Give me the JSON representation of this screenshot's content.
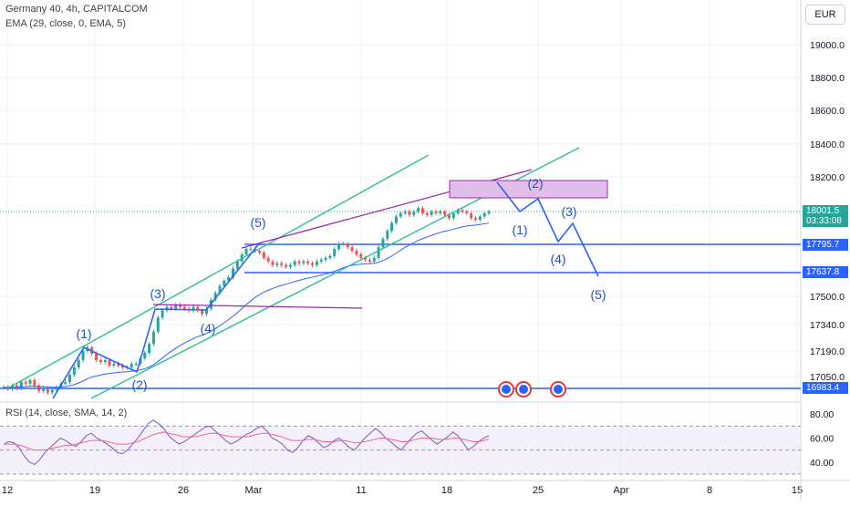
{
  "header": {
    "title": "Germany 40, 4h, CAPITALCOM",
    "ema_label": "EMA (29, close, 0, EMA, 5)",
    "rsi_label": "RSI (14, close, SMA, 14, 2)",
    "currency_button": "EUR"
  },
  "price_tags": {
    "last_price": "18001.5",
    "countdown": "03:33:08",
    "level_1": "17795.7",
    "level_2": "17637.8",
    "level_3": "16983.4"
  },
  "colors": {
    "up": "#26a69a",
    "down": "#ef5350",
    "channel": "#2ebd9b",
    "wave": "#2962ff",
    "wave_label": "#1e53c9",
    "resist": "#9c27b0",
    "rsi": "#7e57c2",
    "rsi_ma": "#f06292",
    "box_fill": "#e1bee7"
  },
  "chart_data": [
    {
      "type": "candlestick",
      "title": "Germany 40, 4h, CAPITALCOM",
      "y_ticks": [
        19000.0,
        18800.0,
        18600.0,
        18400.0,
        18200.0,
        17500.0,
        17340.0,
        17190.0,
        17050.0
      ],
      "x_tick_labels": [
        "12",
        "19",
        "26",
        "Mar",
        "11",
        "18",
        "25",
        "Apr",
        "8",
        "15"
      ],
      "horizontal_levels": [
        17795.7,
        17637.8,
        16983.4
      ],
      "price_path": [
        [
          16990,
          16980,
          17000,
          16985,
          17020,
          17010,
          17030,
          17000,
          16970,
          16985,
          16960,
          16975,
          16990,
          17010,
          17020,
          17060,
          17100,
          17140,
          17190,
          17210,
          17175,
          17140,
          17130,
          17140,
          17110,
          17120,
          17110,
          17100,
          17100,
          17120,
          17120,
          17150,
          17180,
          17230,
          17300,
          17380,
          17420,
          17440,
          17430,
          17450,
          17440,
          17430,
          17420,
          17440,
          17420,
          17400,
          17430,
          17480,
          17520,
          17560,
          17590,
          17610,
          17660,
          17700,
          17740,
          17770,
          17770,
          17760,
          17750,
          17720,
          17700,
          17680,
          17690,
          17680,
          17670,
          17680,
          17700,
          17690,
          17700,
          17690,
          17680,
          17700,
          17710,
          17720,
          17730,
          17770,
          17800,
          17800,
          17780,
          17760,
          17740,
          17720,
          17710,
          17700,
          17720,
          17780,
          17830,
          17880,
          17930,
          17970,
          17990,
          18000,
          17980,
          18000,
          18020,
          17990,
          17980,
          18000,
          17990,
          18000,
          17980,
          17960,
          17990,
          18010,
          18000,
          17990,
          17960,
          17950,
          17970,
          17990,
          18000
        ]
      ],
      "elliott_labels_primary": [
        "(1)",
        "(2)",
        "(3)",
        "(4)",
        "(5)"
      ],
      "elliott_labels_projection": [
        "(1)",
        "(2)",
        "(3)",
        "(4)",
        "(5)"
      ]
    },
    {
      "type": "line",
      "title": "RSI (14, close, SMA, 14, 2)",
      "y_ticks": [
        80.0,
        60.0,
        40.0
      ],
      "ylim": [
        30,
        90
      ],
      "series": [
        {
          "values": [
            55,
            57,
            56,
            52,
            45,
            40,
            38,
            42,
            48,
            52,
            56,
            60,
            58,
            55,
            53,
            57,
            62,
            64,
            60,
            58,
            55,
            52,
            48,
            47,
            50,
            55,
            60,
            66,
            72,
            75,
            72,
            68,
            62,
            58,
            55,
            57,
            60,
            63,
            66,
            69,
            70,
            66,
            62,
            58,
            55,
            57,
            60,
            63,
            65,
            68,
            70,
            66,
            60,
            58,
            55,
            50,
            48,
            52,
            58,
            62,
            60,
            56,
            52,
            54,
            58,
            60,
            56,
            52,
            50,
            55,
            60,
            64,
            68,
            65,
            60,
            57,
            53,
            50,
            55,
            60,
            64,
            66,
            62,
            58,
            55,
            58,
            61,
            65,
            62,
            56,
            50,
            53,
            57,
            60,
            62
          ]
        },
        {
          "values": [
            55,
            55,
            55,
            54,
            53,
            51,
            50,
            50,
            50,
            51,
            52,
            53,
            54,
            54,
            55,
            56,
            57,
            58,
            58,
            58,
            57,
            56,
            55,
            55,
            55,
            56,
            57,
            59,
            61,
            63,
            64,
            65,
            64,
            63,
            62,
            61,
            61,
            61,
            62,
            63,
            64,
            64,
            63,
            62,
            61,
            61,
            61,
            61,
            62,
            63,
            64,
            64,
            63,
            62,
            61,
            59,
            58,
            58,
            58,
            59,
            59,
            58,
            57,
            57,
            57,
            58,
            58,
            57,
            56,
            56,
            57,
            58,
            59,
            60,
            60,
            59,
            58,
            57,
            57,
            58,
            59,
            60,
            60,
            60,
            59,
            59,
            59,
            60,
            60,
            59,
            58,
            57,
            57,
            58,
            59
          ]
        }
      ]
    }
  ]
}
